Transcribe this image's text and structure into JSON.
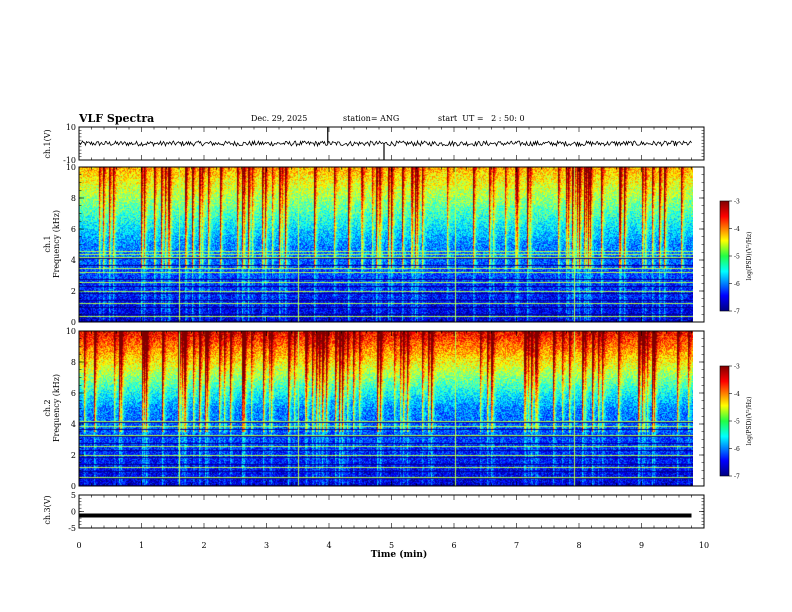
{
  "header": {
    "title": "VLF Spectra",
    "date": "Dec. 29, 2025",
    "station": "station= ANG",
    "start": "start  UT =   2 : 50: 0"
  },
  "chart_data": [
    {
      "type": "line",
      "name": "ch1-waveform",
      "ylabel": "ch.1(V)",
      "ylim": [
        -10,
        10
      ],
      "yticks": [
        10,
        -10
      ],
      "xlim": [
        0,
        10
      ],
      "x_data_end_min": 9.8,
      "baseline_v": 0.0,
      "noise_amplitude_v": 1.5,
      "spikes": [
        {
          "t": 3.98,
          "v": 10
        },
        {
          "t": 4.88,
          "v": -10
        }
      ]
    },
    {
      "type": "heatmap",
      "name": "ch1-spectrogram",
      "ylabel": "ch.1\nFrequency (kHz)",
      "ylim": [
        0,
        10
      ],
      "yticks": [
        0,
        2,
        4,
        6,
        8,
        10
      ],
      "xlim": [
        0,
        10
      ],
      "x_data_end_min": 9.8,
      "colorbar": {
        "label": "log(PSD)(V²/Hz)",
        "range": [
          -7,
          -3
        ],
        "ticks": [
          -3,
          -4,
          -5,
          -6,
          -7
        ]
      },
      "notable_lines_khz": [
        0.4,
        1.2,
        2.0,
        2.6,
        3.2,
        3.5,
        4.2,
        4.4,
        4.6
      ],
      "notable_spike_times_min": [
        1.6,
        3.5,
        6.0,
        7.9
      ]
    },
    {
      "type": "heatmap",
      "name": "ch2-spectrogram",
      "ylabel": "ch.2\nFrequency (kHz)",
      "ylim": [
        0,
        10
      ],
      "yticks": [
        0,
        2,
        4,
        6,
        8,
        10
      ],
      "xlim": [
        0,
        10
      ],
      "x_data_end_min": 9.8,
      "colorbar": {
        "label": "log(PSD)(V²/Hz)",
        "range": [
          -7,
          -3
        ],
        "ticks": [
          -3,
          -4,
          -5,
          -6,
          -7
        ]
      },
      "notable_lines_khz": [
        0.6,
        1.2,
        2.0,
        2.6,
        3.3,
        3.9,
        4.2
      ],
      "notable_spike_times_min": [
        1.6,
        3.5,
        6.0,
        7.9
      ]
    },
    {
      "type": "line",
      "name": "ch3-waveform",
      "ylabel": "ch.3(V)",
      "ylim": [
        -5,
        5
      ],
      "yticks": [
        5,
        0,
        -5
      ],
      "xlim": [
        0,
        10
      ],
      "x_data_end_min": 9.8,
      "baseline_v": -1.2,
      "noise_amplitude_v": 0.0
    }
  ],
  "xaxis": {
    "label": "Time  (min)",
    "ticks": [
      "0",
      "1",
      "2",
      "3",
      "4",
      "5",
      "6",
      "7",
      "8",
      "9",
      "10"
    ]
  }
}
